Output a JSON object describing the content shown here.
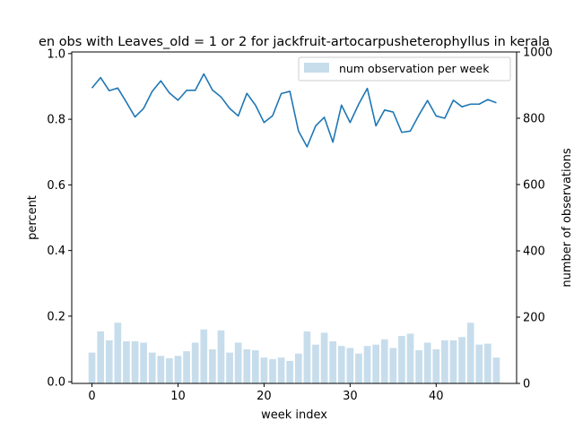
{
  "chart_data": {
    "type": "bar+line",
    "title": "en obs with Leaves_old = 1 or 2 for jackfruit-artocarpusheterophyllus in kerala",
    "xlabel": "week index",
    "ylabel_left": "percent",
    "ylabel_right": "number of observations",
    "xlim": [
      -2.35,
      49.35
    ],
    "ylim_left": [
      -0.005,
      1.005
    ],
    "ylim_right": [
      0,
      1000
    ],
    "xticks": [
      0,
      10,
      20,
      30,
      40
    ],
    "xtick_labels": [
      "0",
      "10",
      "20",
      "30",
      "40"
    ],
    "yticks_left": [
      0.0,
      0.2,
      0.4,
      0.6,
      0.8,
      1.0
    ],
    "ytick_labels_left": [
      "0.0",
      "0.2",
      "0.4",
      "0.6",
      "0.8",
      "1.0"
    ],
    "yticks_right": [
      0,
      200,
      400,
      600,
      800,
      1000
    ],
    "ytick_labels_right": [
      "0",
      "200",
      "400",
      "600",
      "800",
      "1000"
    ],
    "legend": {
      "placement": "top-right",
      "label": "num observation per week"
    },
    "colors": {
      "line": "#1f77b4",
      "bar": "#1f77b4",
      "bar_alpha": 0.25
    },
    "weeks": [
      0,
      1,
      2,
      3,
      4,
      5,
      6,
      7,
      8,
      9,
      10,
      11,
      12,
      13,
      14,
      15,
      16,
      17,
      18,
      19,
      20,
      21,
      22,
      23,
      24,
      25,
      26,
      27,
      28,
      29,
      30,
      31,
      32,
      33,
      34,
      35,
      36,
      37,
      38,
      39,
      40,
      41,
      42,
      43,
      44,
      45,
      46,
      47
    ],
    "percent": [
      0.895,
      0.927,
      0.887,
      0.895,
      0.852,
      0.807,
      0.833,
      0.885,
      0.917,
      0.88,
      0.858,
      0.888,
      0.888,
      0.938,
      0.889,
      0.868,
      0.833,
      0.81,
      0.879,
      0.843,
      0.79,
      0.811,
      0.878,
      0.885,
      0.764,
      0.716,
      0.78,
      0.806,
      0.73,
      0.843,
      0.79,
      0.846,
      0.894,
      0.78,
      0.828,
      0.822,
      0.76,
      0.764,
      0.813,
      0.857,
      0.81,
      0.803,
      0.858,
      0.838,
      0.846,
      0.846,
      0.86,
      0.85
    ],
    "num_observations": [
      93,
      157,
      130,
      183,
      127,
      127,
      123,
      93,
      83,
      76,
      83,
      97,
      123,
      163,
      103,
      160,
      93,
      123,
      103,
      100,
      78,
      73,
      78,
      68,
      90,
      157,
      117,
      153,
      127,
      113,
      107,
      90,
      113,
      117,
      133,
      107,
      143,
      150,
      100,
      123,
      103,
      130,
      130,
      140,
      183,
      117,
      120,
      78
    ]
  }
}
